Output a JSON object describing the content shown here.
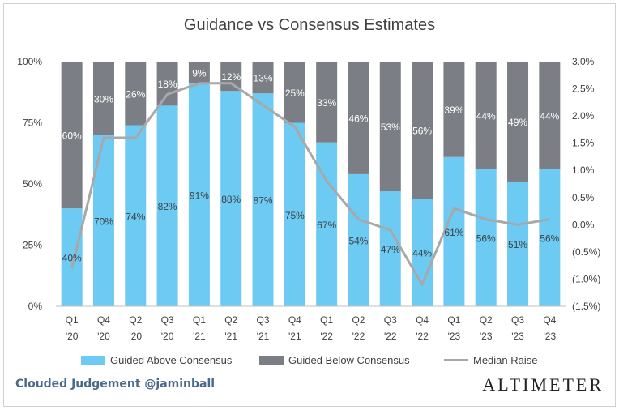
{
  "chart_data": {
    "type": "bar",
    "title": "Guidance vs Consensus Estimates",
    "categories": [
      "Q1 '20",
      "Q4 '20",
      "Q2 '20",
      "Q3 '20",
      "Q1 '21",
      "Q2 '21",
      "Q3 '21",
      "Q4 '21",
      "Q1 '22",
      "Q2 '22",
      "Q3 '22",
      "Q4 '22",
      "Q1 '23",
      "Q2 '23",
      "Q3 '23",
      "Q4 '23"
    ],
    "category_lines": [
      [
        "Q1",
        "'20"
      ],
      [
        "Q4",
        "'20"
      ],
      [
        "Q2",
        "'20"
      ],
      [
        "Q3",
        "'20"
      ],
      [
        "Q1",
        "'21"
      ],
      [
        "Q2",
        "'21"
      ],
      [
        "Q3",
        "'21"
      ],
      [
        "Q4",
        "'21"
      ],
      [
        "Q1",
        "'22"
      ],
      [
        "Q2",
        "'22"
      ],
      [
        "Q3",
        "'22"
      ],
      [
        "Q4",
        "'22"
      ],
      [
        "Q1",
        "'23"
      ],
      [
        "Q2",
        "'23"
      ],
      [
        "Q3",
        "'23"
      ],
      [
        "Q4",
        "'23"
      ]
    ],
    "stacked": true,
    "series": [
      {
        "name": "Guided Above Consensus",
        "color": "#6ccaf3",
        "values": [
          40,
          70,
          74,
          82,
          91,
          88,
          87,
          75,
          67,
          54,
          47,
          44,
          61,
          56,
          51,
          56
        ],
        "label_color": "#404040"
      },
      {
        "name": "Guided Below Consensus",
        "color": "#7b7f85",
        "values": [
          60,
          30,
          26,
          18,
          9,
          12,
          13,
          25,
          33,
          46,
          53,
          56,
          39,
          44,
          49,
          44
        ],
        "label_color": "#ffffff"
      },
      {
        "name": "Median Raise",
        "type": "line",
        "axis": "right",
        "color": "#a8a8a8",
        "values": [
          -0.8,
          1.6,
          1.6,
          2.4,
          2.6,
          2.6,
          2.2,
          1.8,
          0.8,
          0.1,
          -0.1,
          -1.1,
          0.3,
          0.1,
          0.0,
          0.1
        ]
      }
    ],
    "ylim_left": [
      0,
      100
    ],
    "left_ticks": [
      "0%",
      "25%",
      "50%",
      "75%",
      "100%"
    ],
    "ylim_right": [
      -1.5,
      3.0
    ],
    "right_ticks": [
      "(1.5%)",
      "(1.0%)",
      "(0.5%)",
      "0.0%",
      "0.5%",
      "1.0%",
      "1.5%",
      "2.0%",
      "2.5%",
      "3.0%"
    ],
    "legend_position": "bottom",
    "grid": false
  },
  "footer": {
    "source": "Clouded Judgement @jaminball",
    "brand": "ALTIMETER"
  }
}
